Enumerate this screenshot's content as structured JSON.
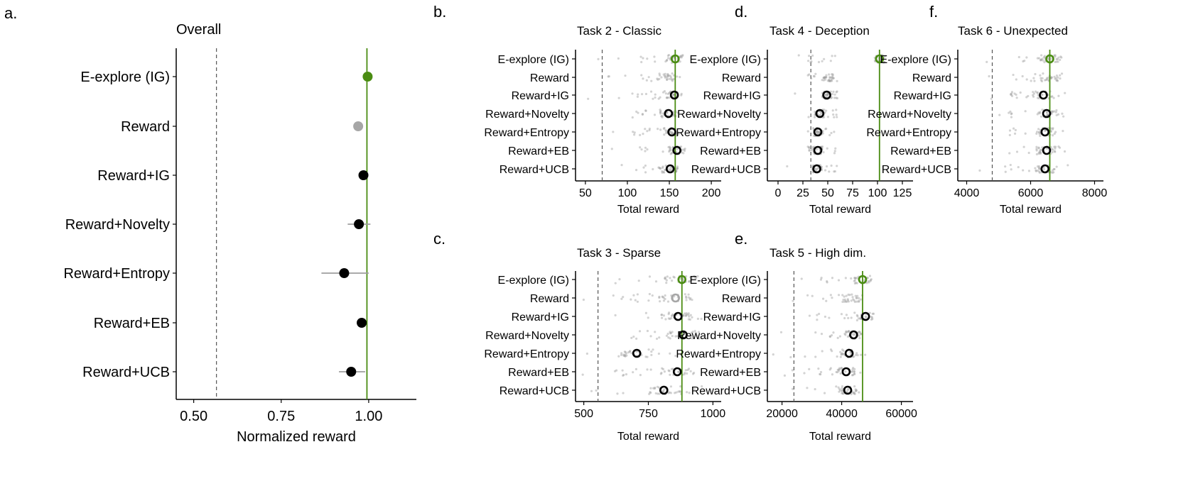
{
  "colors": {
    "accent": "#4a8c12",
    "point": "#000000",
    "gray": "#a6a6a6",
    "jitter": "#9e9e9e",
    "err": "#9e9e9e"
  },
  "methods": [
    "E-explore (IG)",
    "Reward",
    "Reward+IG",
    "Reward+Novelty",
    "Reward+Entropy",
    "Reward+EB",
    "Reward+UCB"
  ],
  "chart_data": [
    {
      "id": "a",
      "panel_label": "a.",
      "type": "scatter",
      "title": "Overall",
      "xlabel": "Normalized reward",
      "xlim": [
        0.45,
        1.12
      ],
      "xticks": [
        0.5,
        0.75,
        1.0
      ],
      "xtick_labels": [
        "0.50",
        "0.75",
        "1.00"
      ],
      "ref_dashed": 0.565,
      "ref_solid": 0.995,
      "points": [
        {
          "method": "E-explore (IG)",
          "value": 0.997,
          "lo": 0.997,
          "hi": 0.997,
          "style": "green"
        },
        {
          "method": "Reward",
          "value": 0.97,
          "lo": 0.97,
          "hi": 0.97,
          "style": "gray"
        },
        {
          "method": "Reward+IG",
          "value": 0.985,
          "lo": 0.985,
          "hi": 0.985,
          "style": "black"
        },
        {
          "method": "Reward+Novelty",
          "value": 0.972,
          "lo": 0.94,
          "hi": 1.005,
          "style": "black"
        },
        {
          "method": "Reward+Entropy",
          "value": 0.93,
          "lo": 0.865,
          "hi": 1.0,
          "style": "black"
        },
        {
          "method": "Reward+EB",
          "value": 0.98,
          "lo": 0.98,
          "hi": 0.98,
          "style": "black"
        },
        {
          "method": "Reward+UCB",
          "value": 0.95,
          "lo": 0.915,
          "hi": 0.99,
          "style": "black"
        }
      ]
    },
    {
      "id": "b",
      "panel_label": "b.",
      "type": "scatter",
      "title": "Task 2 - Classic",
      "xlabel": "Total reward",
      "xlim": [
        45,
        205
      ],
      "xticks": [
        50,
        100,
        150,
        200
      ],
      "xtick_labels": [
        "50",
        "100",
        "150",
        "200"
      ],
      "ref_dashed": 70,
      "ref_solid": 157,
      "jitter_range": [
        105,
        163
      ],
      "means": [
        {
          "method": "E-explore (IG)",
          "value": 157,
          "style": "green"
        },
        {
          "method": "Reward",
          "value": null,
          "style": "none"
        },
        {
          "method": "Reward+IG",
          "value": 156,
          "style": "black"
        },
        {
          "method": "Reward+Novelty",
          "value": 149,
          "style": "black"
        },
        {
          "method": "Reward+Entropy",
          "value": 153,
          "style": "black"
        },
        {
          "method": "Reward+EB",
          "value": 159,
          "style": "black"
        },
        {
          "method": "Reward+UCB",
          "value": 151,
          "style": "black"
        }
      ]
    },
    {
      "id": "c",
      "panel_label": "c.",
      "type": "scatter",
      "title": "Task 3 - Sparse",
      "xlabel": "Total reward",
      "xlim": [
        490,
        1010
      ],
      "xticks": [
        500,
        750,
        1000
      ],
      "xtick_labels": [
        "500",
        "750",
        "1000"
      ],
      "ref_dashed": 555,
      "ref_solid": 880,
      "jitter_range": [
        620,
        990
      ],
      "means": [
        {
          "method": "E-explore (IG)",
          "value": 880,
          "style": "green"
        },
        {
          "method": "Reward",
          "value": 855,
          "style": "gray"
        },
        {
          "method": "Reward+IG",
          "value": 865,
          "style": "black"
        },
        {
          "method": "Reward+Novelty",
          "value": 885,
          "style": "black"
        },
        {
          "method": "Reward+Entropy",
          "value": 705,
          "style": "black"
        },
        {
          "method": "Reward+EB",
          "value": 862,
          "style": "black"
        },
        {
          "method": "Reward+UCB",
          "value": 810,
          "style": "black"
        }
      ]
    },
    {
      "id": "d",
      "panel_label": "d.",
      "type": "scatter",
      "title": "Task 4 - Deception",
      "xlabel": "Total reward",
      "xlim": [
        -5,
        130
      ],
      "xticks": [
        0,
        25,
        50,
        75,
        100,
        125
      ],
      "xtick_labels": [
        "0",
        "25",
        "50",
        "75",
        "100",
        "125"
      ],
      "ref_dashed": 33,
      "ref_solid": 102,
      "jitter_range": [
        30,
        60
      ],
      "means": [
        {
          "method": "E-explore (IG)",
          "value": 102,
          "style": "green"
        },
        {
          "method": "Reward",
          "value": null,
          "style": "none"
        },
        {
          "method": "Reward+IG",
          "value": 49,
          "style": "black"
        },
        {
          "method": "Reward+Novelty",
          "value": 42,
          "style": "black"
        },
        {
          "method": "Reward+Entropy",
          "value": 40,
          "style": "black"
        },
        {
          "method": "Reward+EB",
          "value": 40,
          "style": "black"
        },
        {
          "method": "Reward+UCB",
          "value": 39,
          "style": "black"
        }
      ]
    },
    {
      "id": "e",
      "panel_label": "e.",
      "type": "scatter",
      "title": "Task 5 - High dim.",
      "xlabel": "Total reward",
      "xlim": [
        17000,
        62000
      ],
      "xticks": [
        20000,
        40000,
        60000
      ],
      "xtick_labels": [
        "20000",
        "40000",
        "60000"
      ],
      "ref_dashed": 24000,
      "ref_solid": 47000,
      "jitter_range": [
        31000,
        48000
      ],
      "means": [
        {
          "method": "E-explore (IG)",
          "value": 47000,
          "style": "green"
        },
        {
          "method": "Reward",
          "value": null,
          "style": "none"
        },
        {
          "method": "Reward+IG",
          "value": 48000,
          "style": "black"
        },
        {
          "method": "Reward+Novelty",
          "value": 44000,
          "style": "black"
        },
        {
          "method": "Reward+Entropy",
          "value": 42500,
          "style": "black"
        },
        {
          "method": "Reward+EB",
          "value": 41500,
          "style": "black"
        },
        {
          "method": "Reward+UCB",
          "value": 42000,
          "style": "black"
        }
      ]
    },
    {
      "id": "f",
      "panel_label": "f.",
      "type": "scatter",
      "title": "Task 6 - Unexpected",
      "xlabel": "Total reward",
      "xlim": [
        3900,
        8100
      ],
      "xticks": [
        4000,
        6000,
        8000
      ],
      "xtick_labels": [
        "4000",
        "6000",
        "8000"
      ],
      "ref_dashed": 4800,
      "ref_solid": 6600,
      "jitter_range": [
        5300,
        7200
      ],
      "means": [
        {
          "method": "E-explore (IG)",
          "value": 6600,
          "style": "green"
        },
        {
          "method": "Reward",
          "value": null,
          "style": "none"
        },
        {
          "method": "Reward+IG",
          "value": 6400,
          "style": "black"
        },
        {
          "method": "Reward+Novelty",
          "value": 6500,
          "style": "black"
        },
        {
          "method": "Reward+Entropy",
          "value": 6450,
          "style": "black"
        },
        {
          "method": "Reward+EB",
          "value": 6500,
          "style": "black"
        },
        {
          "method": "Reward+UCB",
          "value": 6450,
          "style": "black"
        }
      ]
    }
  ]
}
